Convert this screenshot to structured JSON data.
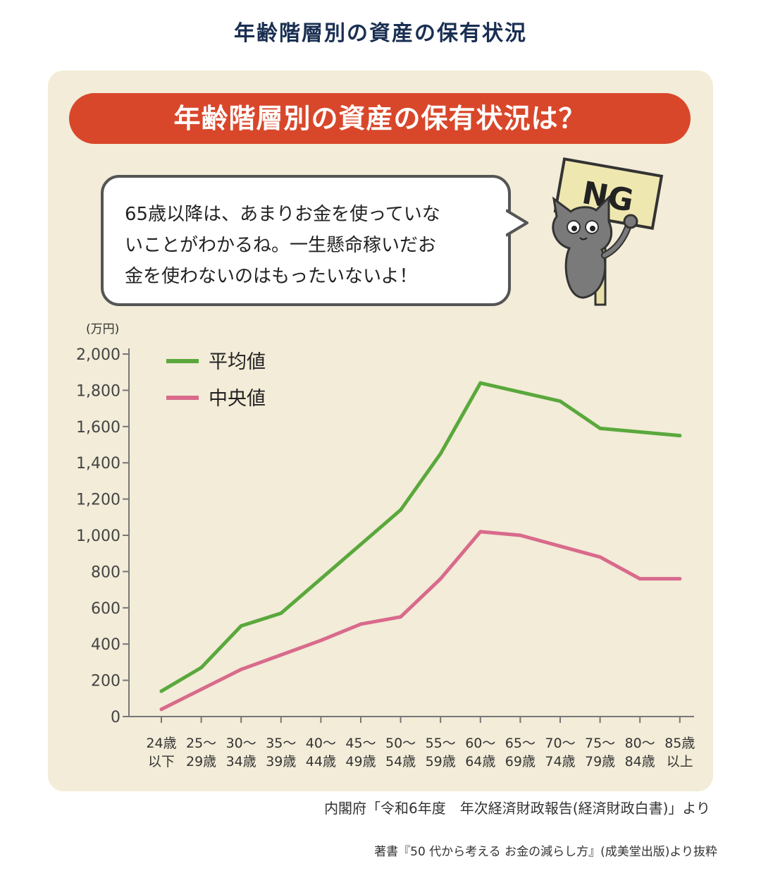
{
  "page_title": "年齢階層別の資産の保有状況",
  "banner_title": "年齢階層別の資産の保有状況は？",
  "speech_lines": [
    "65歳以降は、あまりお金を使っていな",
    "いことがわかるね。一生懸命稼いだお",
    "金を使わないのはもったいないよ！"
  ],
  "sign_text": "NG",
  "source_note": "内閣府「令和6年度　年次経済財政報告(経済財政白書)」より",
  "credit_note": "著書『50 代から考える お金の減らし方』(成美堂出版)より抜粋",
  "colors": {
    "average": "#5aa83c",
    "median": "#d96a8c",
    "banner": "#d9472b",
    "panel": "#f2ecd8"
  },
  "chart_data": {
    "type": "line",
    "unit_label": "(万円)",
    "categories": [
      [
        "24歳",
        "以下"
      ],
      [
        "25〜",
        "29歳"
      ],
      [
        "30〜",
        "34歳"
      ],
      [
        "35〜",
        "39歳"
      ],
      [
        "40〜",
        "44歳"
      ],
      [
        "45〜",
        "49歳"
      ],
      [
        "50〜",
        "54歳"
      ],
      [
        "55〜",
        "59歳"
      ],
      [
        "60〜",
        "64歳"
      ],
      [
        "65〜",
        "69歳"
      ],
      [
        "70〜",
        "74歳"
      ],
      [
        "75〜",
        "79歳"
      ],
      [
        "80〜",
        "84歳"
      ],
      [
        "85歳",
        "以上"
      ]
    ],
    "ylim": [
      0,
      2000
    ],
    "yticks": [
      0,
      200,
      400,
      600,
      800,
      1000,
      1200,
      1400,
      1600,
      1800,
      2000
    ],
    "ytick_labels": [
      "0",
      "200",
      "400",
      "600",
      "800",
      "1,000",
      "1,200",
      "1,400",
      "1,600",
      "1,800",
      "2,000"
    ],
    "grid": false,
    "legend_position": "top-left",
    "series": [
      {
        "name": "平均値",
        "color": "#5aa83c",
        "values": [
          140,
          270,
          500,
          570,
          760,
          950,
          1140,
          1450,
          1840,
          1790,
          1740,
          1590,
          1570,
          1550
        ]
      },
      {
        "name": "中央値",
        "color": "#d96a8c",
        "values": [
          40,
          150,
          260,
          340,
          420,
          510,
          550,
          760,
          1020,
          1000,
          940,
          880,
          760,
          760
        ]
      }
    ]
  }
}
